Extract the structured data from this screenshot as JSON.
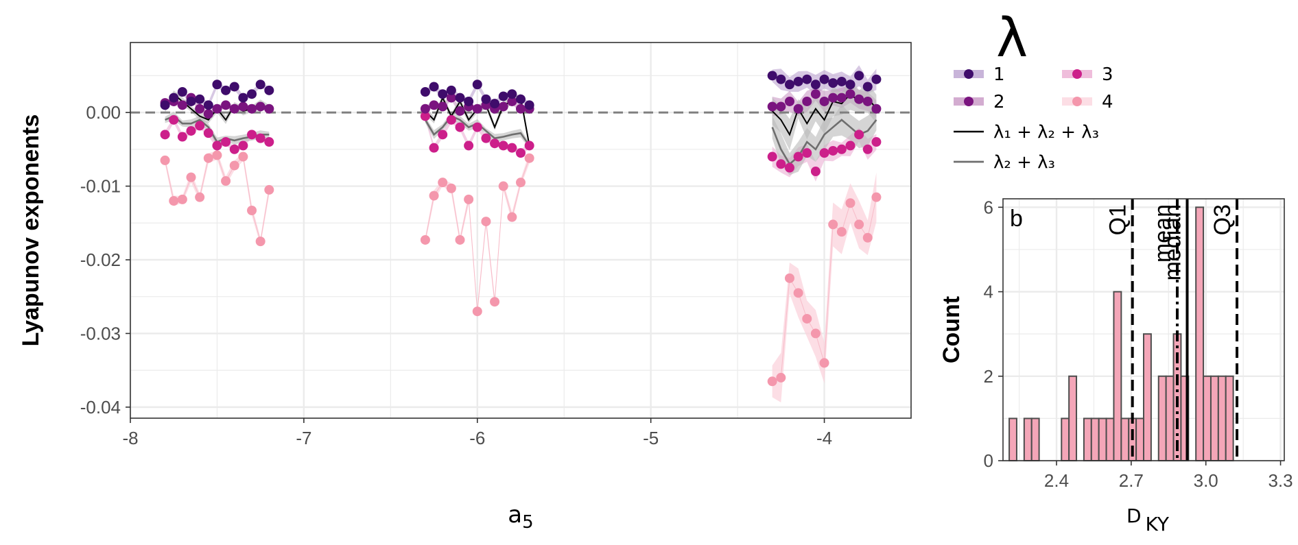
{
  "chart_data": [
    {
      "type": "scatter",
      "xlabel": "a5",
      "ylabel": "Lyapunov exponents",
      "xlim": [
        -8,
        -3.5
      ],
      "ylim": [
        -0.0415,
        0.0095
      ],
      "xticks": [
        -8,
        -7,
        -6,
        -5,
        -4
      ],
      "yticks": [
        -0.04,
        -0.03,
        -0.02,
        -0.01,
        0.0
      ],
      "ytick_labels": [
        "-0.04",
        "-0.03",
        "-0.02",
        "-0.01",
        "0.00"
      ],
      "grid": true,
      "reference_line_y": 0,
      "legend_title": "λ",
      "legend_position": "right",
      "legend_entries": [
        "1",
        "2",
        "3",
        "4",
        "λ₁ + λ₂ + λ₃",
        "λ₂ + λ₃"
      ],
      "colors": {
        "l1": "#3f0c6b",
        "l2": "#7a147f",
        "l3": "#cc1f8a",
        "l4": "#f497ac",
        "band1": "#b69bcc",
        "band2": "#c490c0",
        "band3": "#e9a7cf",
        "band4": "#fbd3dc",
        "sum123": "#000000",
        "sum23": "#6e6e6e",
        "sum_band": "#b9b9b9"
      },
      "groups": [
        {
          "x": [
            -7.8,
            -7.75,
            -7.7,
            -7.65,
            -7.6,
            -7.55,
            -7.5,
            -7.45,
            -7.4,
            -7.35,
            -7.3,
            -7.25,
            -7.2
          ],
          "series": [
            {
              "name": "1",
              "values": [
                0.001,
                0.002,
                0.0028,
                0.0015,
                0.0018,
                0.001,
                0.0038,
                0.003,
                0.0035,
                0.002,
                0.0025,
                0.0038,
                0.003
              ]
            },
            {
              "name": "2",
              "values": [
                0.0013,
                0.0015,
                0.001,
                0.002,
                0.0005,
                -0.0002,
                0.0005,
                0.001,
                0.0005,
                0.0008,
                0.0005,
                0.0008,
                0.0005
              ]
            },
            {
              "name": "3",
              "values": [
                -0.003,
                -0.001,
                -0.0033,
                -0.0025,
                -0.0018,
                -0.0028,
                -0.0045,
                -0.004,
                -0.005,
                -0.0045,
                -0.003,
                -0.0035,
                -0.004
              ]
            },
            {
              "name": "4",
              "values": [
                -0.0065,
                -0.012,
                -0.0118,
                -0.0088,
                -0.0115,
                -0.0062,
                -0.0058,
                -0.0093,
                -0.0072,
                -0.006,
                -0.0133,
                -0.0175,
                -0.0105
              ]
            },
            {
              "name": "λ₁ + λ₂ + λ₃",
              "values": [
                0.0005,
                0.0025,
                0.0015,
                0.0005,
                -0.0005,
                -0.001,
                0.0005,
                -0.001,
                0.001,
                0.0002,
                0.0005,
                0.0012,
                0.0005
              ]
            },
            {
              "name": "λ₂ + λ₃",
              "values": [
                -0.001,
                -0.0005,
                -0.0015,
                -0.0015,
                -0.001,
                -0.002,
                -0.004,
                -0.0035,
                -0.0038,
                -0.0035,
                -0.0033,
                -0.003,
                -0.003
              ]
            }
          ]
        },
        {
          "x": [
            -6.3,
            -6.25,
            -6.2,
            -6.15,
            -6.1,
            -6.05,
            -6.0,
            -5.95,
            -5.9,
            -5.85,
            -5.8,
            -5.75,
            -5.7
          ],
          "series": [
            {
              "name": "1",
              "values": [
                0.0028,
                0.0035,
                0.0025,
                0.003,
                0.002,
                0.0015,
                0.0038,
                0.0018,
                0.0012,
                0.0022,
                0.0025,
                0.0018,
                0.001
              ]
            },
            {
              "name": "2",
              "values": [
                0.0005,
                0.001,
                0.0008,
                0.002,
                0.0002,
                0.0008,
                0.0005,
                0.001,
                0.0005,
                0.0008,
                0.0015,
                0.0005,
                0.0005
              ]
            },
            {
              "name": "3",
              "values": [
                -0.0005,
                -0.0048,
                -0.003,
                -0.001,
                -0.002,
                -0.0045,
                -0.002,
                -0.0035,
                -0.0042,
                -0.0045,
                -0.0048,
                -0.0055,
                -0.0045
              ]
            },
            {
              "name": "4",
              "values": [
                -0.0173,
                -0.0113,
                -0.0095,
                -0.0103,
                -0.0173,
                -0.0118,
                -0.027,
                -0.0148,
                -0.0257,
                -0.01,
                -0.0142,
                -0.0095,
                -0.0062
              ]
            },
            {
              "name": "λ₁ + λ₂ + λ₃",
              "values": [
                0.0002,
                -0.001,
                0.002,
                -0.0005,
                0.0015,
                -0.001,
                0.0005,
                0.001,
                -0.002,
                0.001,
                0.0015,
                0.002,
                -0.0045
              ]
            },
            {
              "name": "λ₂ + λ₃",
              "values": [
                -0.001,
                -0.003,
                -0.002,
                -0.0005,
                -0.001,
                -0.002,
                -0.0015,
                -0.0025,
                -0.0035,
                -0.0033,
                -0.003,
                -0.0028,
                -0.0045
              ]
            }
          ]
        },
        {
          "x": [
            -4.3,
            -4.25,
            -4.2,
            -4.15,
            -4.1,
            -4.05,
            -4.0,
            -3.95,
            -3.9,
            -3.85,
            -3.8,
            -3.75,
            -3.7
          ],
          "series": [
            {
              "name": "1",
              "values": [
                0.005,
                0.0045,
                0.0038,
                0.0042,
                0.0045,
                0.0038,
                0.0045,
                0.004,
                0.0042,
                0.0038,
                0.005,
                0.0035,
                0.0045
              ]
            },
            {
              "name": "2",
              "values": [
                0.0008,
                0.0008,
                0.0015,
                0.0005,
                0.0015,
                0.0025,
                0.0015,
                0.002,
                0.002,
                0.0025,
                0.0018,
                0.0015,
                0.0005
              ]
            },
            {
              "name": "3",
              "values": [
                -0.006,
                -0.007,
                -0.0075,
                -0.006,
                -0.0055,
                -0.008,
                -0.0055,
                -0.0052,
                -0.005,
                -0.0045,
                -0.003,
                -0.005,
                -0.004
              ]
            },
            {
              "name": "4",
              "values": [
                -0.0365,
                -0.036,
                -0.0225,
                -0.0245,
                -0.028,
                -0.03,
                -0.034,
                -0.0152,
                -0.0162,
                -0.0123,
                -0.0152,
                -0.017,
                -0.0115
              ]
            },
            {
              "name": "λ₁ + λ₂ + λ₃",
              "values": [
                0.0002,
                -0.001,
                -0.003,
                0.0005,
                -0.0015,
                0.0005,
                -0.001,
                0.0015,
                0.0012,
                0.0025,
                0.0015,
                0.002,
                0.0005
              ]
            },
            {
              "name": "λ₂ + λ₃",
              "values": [
                -0.002,
                -0.005,
                -0.007,
                -0.006,
                -0.004,
                -0.005,
                -0.003,
                -0.002,
                -0.001,
                -0.002,
                -0.003,
                -0.0025,
                -0.001
              ]
            }
          ]
        }
      ]
    },
    {
      "type": "bar",
      "panel_label": "b",
      "xlabel": "D KY",
      "ylabel": "Count",
      "xlim": [
        2.185,
        3.315
      ],
      "ylim": [
        0,
        6.2
      ],
      "xticks": [
        2.4,
        2.7,
        3.0,
        3.3
      ],
      "xtick_labels": [
        "2.4",
        "2.7",
        "3.0",
        "3.3"
      ],
      "yticks": [
        0,
        2,
        4,
        6
      ],
      "ytick_labels": [
        "0",
        "2",
        "4",
        "6"
      ],
      "grid": true,
      "bin_width": 0.03,
      "bin_start": 2.21,
      "counts": [
        1,
        0,
        1,
        1,
        0,
        0,
        0,
        1,
        2,
        0,
        1,
        1,
        1,
        1,
        4,
        1,
        1,
        1,
        3,
        0,
        2,
        2,
        3,
        2,
        0,
        6,
        2,
        2,
        2,
        2
      ],
      "bar_color": "#f4a6b8",
      "bar_edge_color": "#4d4d4d",
      "vlines": [
        {
          "name": "Q1",
          "x": 2.705,
          "style": "dashed"
        },
        {
          "name": "mean",
          "x": 2.885,
          "style": "dashdot"
        },
        {
          "name": "median",
          "x": 2.925,
          "style": "solid"
        },
        {
          "name": "Q3",
          "x": 3.125,
          "style": "dashed"
        }
      ]
    }
  ]
}
